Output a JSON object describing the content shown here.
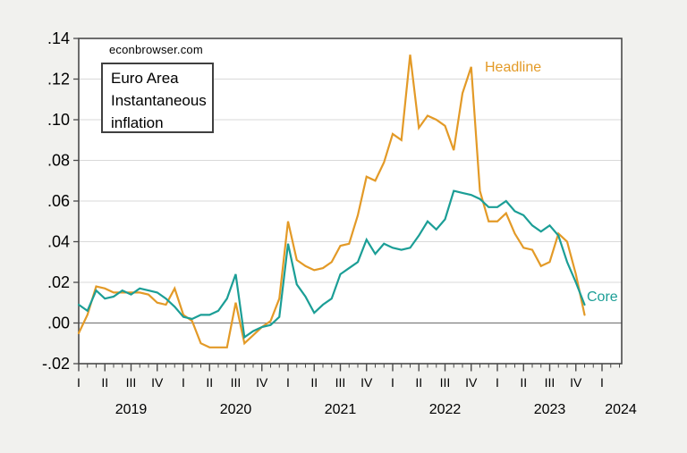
{
  "watermark": "econbrowser.com",
  "title_box": {
    "lines": [
      "Euro Area",
      "Instantaneous",
      "inflation"
    ]
  },
  "series_labels": {
    "headline": "Headline",
    "core": "Core"
  },
  "colors": {
    "background": "#F1F1EE",
    "plot_background": "#FFFFFF",
    "grid": "#D9D9D9",
    "zero_line": "#7F7F7F",
    "frame": "#4A4A4A",
    "headline": "#E39A27",
    "core": "#1B9E96",
    "text": "#000000"
  },
  "chart_data": {
    "type": "line",
    "title": "Euro Area Instantaneous inflation",
    "watermark": "econbrowser.com",
    "xlabel": "",
    "ylabel": "",
    "frequency": "monthly",
    "x_start": "2019-01",
    "x_end": "2023-11",
    "ylim": [
      -0.02,
      0.14
    ],
    "grid": true,
    "zero_line": true,
    "legend_position": "inline-annotations",
    "y_axis": {
      "ticks": [
        {
          "value": 0.14,
          "label": ".14"
        },
        {
          "value": 0.12,
          "label": ".12"
        },
        {
          "value": 0.1,
          "label": ".10"
        },
        {
          "value": 0.08,
          "label": ".08"
        },
        {
          "value": 0.06,
          "label": ".06"
        },
        {
          "value": 0.04,
          "label": ".04"
        },
        {
          "value": 0.02,
          "label": ".02"
        },
        {
          "value": 0.0,
          "label": ".00"
        },
        {
          "value": -0.02,
          "label": "-.02"
        }
      ]
    },
    "x_axis": {
      "quarter_tick_labels": [
        "I",
        "II",
        "III",
        "IV",
        "I",
        "II",
        "III",
        "IV",
        "I",
        "II",
        "III",
        "IV",
        "I",
        "II",
        "III",
        "IV",
        "I",
        "II",
        "III",
        "IV",
        "I"
      ],
      "year_labels": [
        "2019",
        "2020",
        "2021",
        "2022",
        "2023",
        "2024"
      ]
    },
    "series": [
      {
        "name": "Headline",
        "color": "#E39A27",
        "values": [
          -0.005,
          0.004,
          0.018,
          0.017,
          0.015,
          0.015,
          0.015,
          0.015,
          0.014,
          0.01,
          0.009,
          0.017,
          0.004,
          0.001,
          -0.01,
          -0.012,
          -0.012,
          -0.012,
          0.01,
          -0.01,
          -0.006,
          -0.002,
          0.001,
          0.012,
          0.05,
          0.031,
          0.028,
          0.026,
          0.027,
          0.03,
          0.038,
          0.039,
          0.053,
          0.072,
          0.07,
          0.079,
          0.093,
          0.09,
          0.132,
          0.096,
          0.102,
          0.1,
          0.097,
          0.085,
          0.113,
          0.126,
          0.065,
          0.05,
          0.05,
          0.054,
          0.044,
          0.037,
          0.036,
          0.028,
          0.03,
          0.044,
          0.04,
          0.024,
          0.004
        ]
      },
      {
        "name": "Core",
        "color": "#1B9E96",
        "values": [
          0.009,
          0.006,
          0.016,
          0.012,
          0.013,
          0.016,
          0.014,
          0.017,
          0.016,
          0.015,
          0.012,
          0.008,
          0.003,
          0.002,
          0.004,
          0.004,
          0.006,
          0.012,
          0.024,
          -0.007,
          -0.004,
          -0.002,
          -0.001,
          0.003,
          0.039,
          0.019,
          0.013,
          0.005,
          0.009,
          0.012,
          0.024,
          0.027,
          0.03,
          0.041,
          0.034,
          0.039,
          0.037,
          0.036,
          0.037,
          0.043,
          0.05,
          0.046,
          0.051,
          0.065,
          0.064,
          0.063,
          0.061,
          0.057,
          0.057,
          0.06,
          0.055,
          0.053,
          0.048,
          0.045,
          0.048,
          0.043,
          0.03,
          0.02,
          0.009
        ]
      }
    ]
  }
}
